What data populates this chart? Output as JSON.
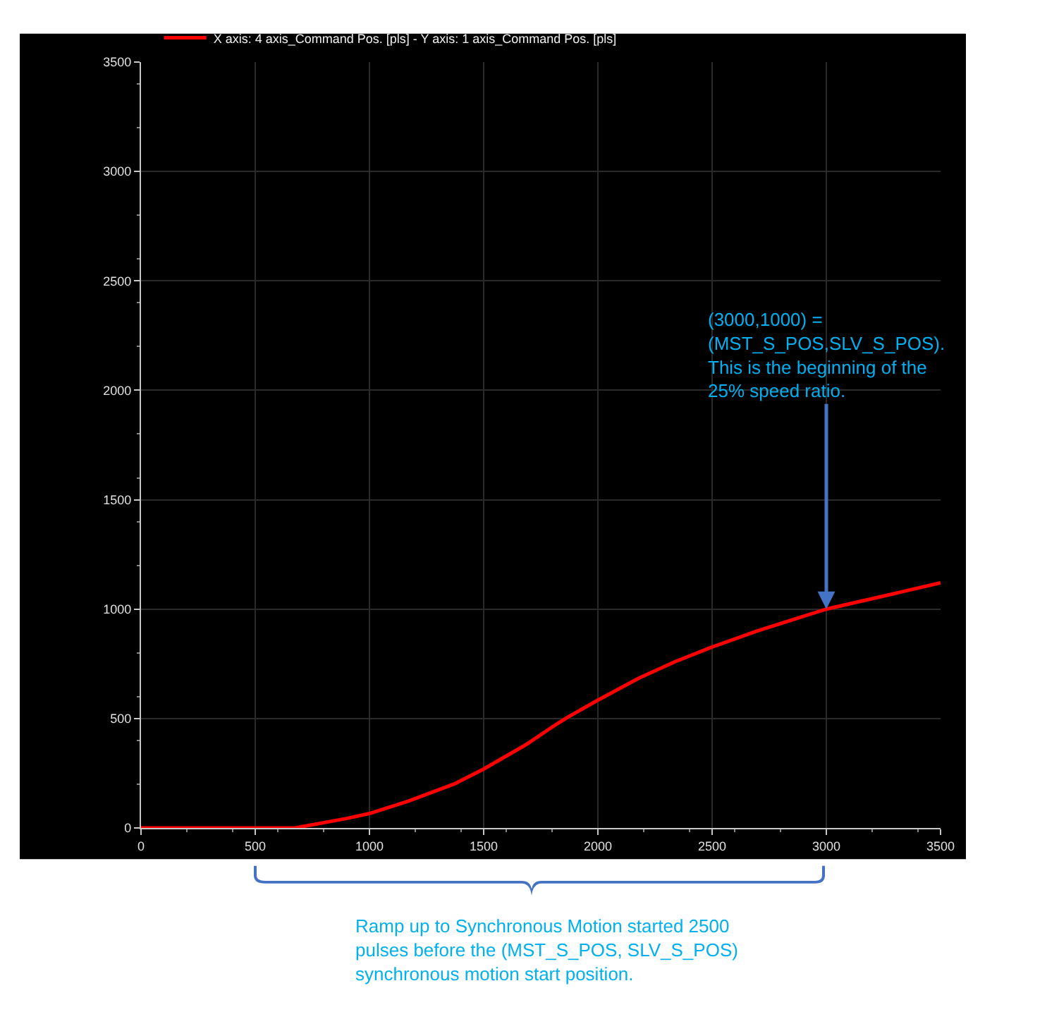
{
  "chart_data": {
    "type": "line",
    "x": [
      0,
      500,
      674,
      899,
      1000,
      1169,
      1371,
      1500,
      1686,
      1798,
      1866,
      2000,
      2180,
      2338,
      2500,
      2698,
      3000,
      3260,
      3500
    ],
    "series": [
      {
        "name": "X axis: 4 axis_Command Pos. [pls] - Y axis: 1 axis_Command Pos. [pls]",
        "color": "#ff0000",
        "values": [
          0,
          0,
          0,
          43,
          66,
          122,
          201,
          269,
          381,
          460,
          505,
          584,
          685,
          760,
          827,
          900,
          1000,
          1062,
          1120
        ]
      }
    ],
    "xlim": [
      0,
      3500
    ],
    "xticks": [
      0,
      500,
      1000,
      1500,
      2000,
      2500,
      3000,
      3500
    ],
    "ylim": [
      0,
      3500
    ],
    "yticks": [
      0,
      500,
      1000,
      1500,
      2000,
      2500,
      3000,
      3500
    ],
    "grid": true,
    "legend": "top",
    "marker": "none",
    "line_style": "solid",
    "annotations": [
      {
        "text": "(3000,1000) =\n(MST_S_POS,SLV_S_POS).\nThis is the beginning of the\n25% speed ratio.",
        "x": 3000,
        "y": 1000
      },
      "Ramp up to Synchronous Motion started 2500\npulses before the (MST_S_POS, SLV_S_POS)\nsynchronous motion start position."
    ]
  }
}
